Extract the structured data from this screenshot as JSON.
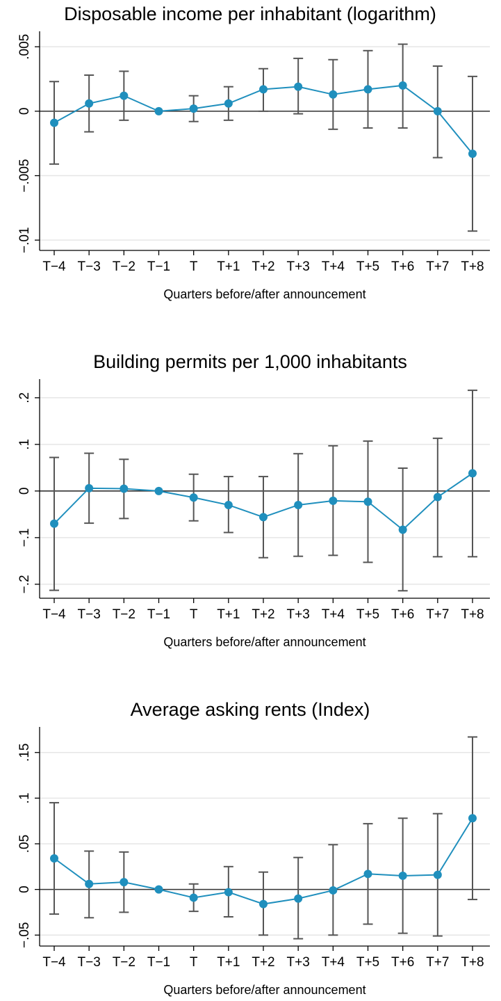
{
  "chart_data": [
    {
      "type": "errorbar",
      "title": "Disposable income per inhabitant (logarithm)",
      "xlabel": "Quarters before/after announcement",
      "categories": [
        "T−4",
        "T−3",
        "T−2",
        "T−1",
        "T",
        "T+1",
        "T+2",
        "T+3",
        "T+4",
        "T+5",
        "T+6",
        "T+7",
        "T+8"
      ],
      "values": [
        -0.0009,
        0.0006,
        0.0012,
        0,
        0.0002,
        0.0006,
        0.0017,
        0.0019,
        0.0013,
        0.0017,
        0.002,
        0,
        -0.0033
      ],
      "ci_low": [
        -0.0041,
        -0.0016,
        -0.0007,
        null,
        -0.0008,
        -0.0007,
        0.0,
        -0.0002,
        -0.0014,
        -0.0013,
        -0.0013,
        -0.0036,
        -0.0093
      ],
      "ci_high": [
        0.0023,
        0.0028,
        0.0031,
        null,
        0.0012,
        0.0019,
        0.0033,
        0.0041,
        0.004,
        0.0047,
        0.0052,
        0.0035,
        0.0027
      ],
      "color": "#1f8fbd",
      "errorbar_color": "#555555",
      "ylim": [
        -0.0108,
        0.0062
      ],
      "yticks": [
        {
          "value": -0.01,
          "label": "−.01"
        },
        {
          "value": -0.005,
          "label": "−.005"
        },
        0,
        {
          "value": 0.005,
          "label": ".005"
        }
      ],
      "grid": true,
      "zero_line": true
    },
    {
      "type": "errorbar",
      "title": "Building permits per 1,000 inhabitants",
      "xlabel": "Quarters before/after announcement",
      "categories": [
        "T−4",
        "T−3",
        "T−2",
        "T−1",
        "T",
        "T+1",
        "T+2",
        "T+3",
        "T+4",
        "T+5",
        "T+6",
        "T+7",
        "T+8"
      ],
      "values": [
        -0.07,
        0.006,
        0.005,
        0,
        -0.014,
        -0.03,
        -0.056,
        -0.03,
        -0.021,
        -0.023,
        -0.083,
        -0.013,
        0.038
      ],
      "ci_low": [
        -0.213,
        -0.069,
        -0.059,
        null,
        -0.064,
        -0.089,
        -0.143,
        -0.14,
        -0.138,
        -0.153,
        -0.214,
        -0.141,
        -0.141
      ],
      "ci_high": [
        0.072,
        0.081,
        0.068,
        null,
        0.036,
        0.031,
        0.031,
        0.08,
        0.097,
        0.107,
        0.049,
        0.113,
        0.216
      ],
      "color": "#1f8fbd",
      "errorbar_color": "#555555",
      "ylim": [
        -0.23,
        0.24
      ],
      "yticks": [
        {
          "value": -0.2,
          "label": "−.2"
        },
        {
          "value": -0.1,
          "label": "−.1"
        },
        0,
        {
          "value": 0.1,
          "label": ".1"
        },
        {
          "value": 0.2,
          "label": ".2"
        }
      ],
      "grid": true,
      "zero_line": true
    },
    {
      "type": "errorbar",
      "title": "Average asking rents (Index)",
      "xlabel": "Quarters before/after announcement",
      "categories": [
        "T−4",
        "T−3",
        "T−2",
        "T−1",
        "T",
        "T+1",
        "T+2",
        "T+3",
        "T+4",
        "T+5",
        "T+6",
        "T+7",
        "T+8"
      ],
      "values": [
        0.034,
        0.006,
        0.008,
        0,
        -0.009,
        -0.003,
        -0.016,
        -0.01,
        -0.001,
        0.017,
        0.015,
        0.016,
        0.078
      ],
      "ci_low": [
        -0.027,
        -0.031,
        -0.025,
        null,
        -0.024,
        -0.03,
        -0.05,
        -0.054,
        -0.05,
        -0.038,
        -0.048,
        -0.051,
        -0.011
      ],
      "ci_high": [
        0.095,
        0.042,
        0.041,
        null,
        0.006,
        0.025,
        0.019,
        0.035,
        0.049,
        0.072,
        0.078,
        0.083,
        0.167
      ],
      "color": "#1f8fbd",
      "errorbar_color": "#555555",
      "ylim": [
        -0.062,
        0.178
      ],
      "yticks": [
        {
          "value": -0.05,
          "label": "−.05"
        },
        0,
        {
          "value": 0.05,
          "label": ".05"
        },
        {
          "value": 0.1,
          "label": ".1"
        },
        {
          "value": 0.15,
          "label": ".15"
        }
      ],
      "grid": true,
      "zero_line": true
    }
  ]
}
